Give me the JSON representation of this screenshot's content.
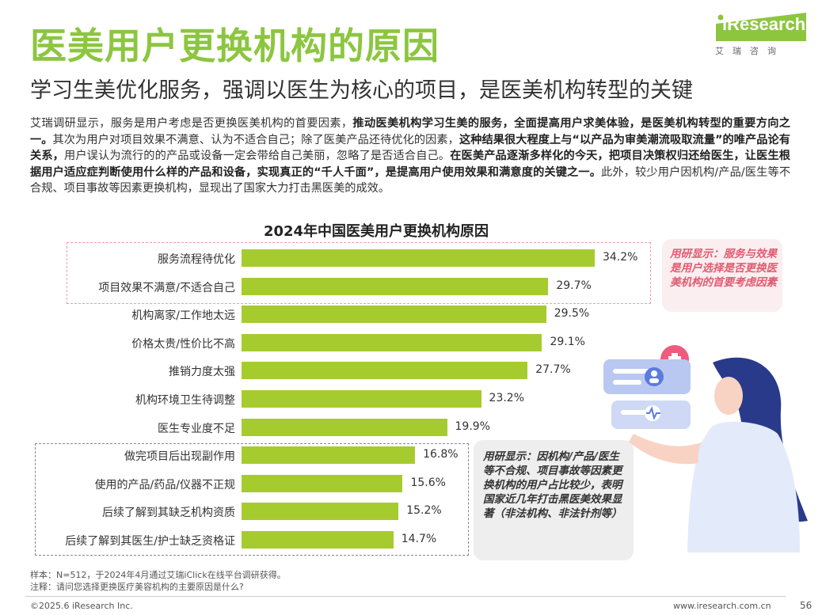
{
  "header": {
    "title": "医美用户更换机构的原因",
    "subtitle": "学习生美优化服务，强调以医生为核心的项目，是医美机构转型的关键",
    "logo_text": "iResearch",
    "logo_sub": "艾瑞咨询"
  },
  "body": {
    "p1": "艾瑞调研显示，服务是用户考虑是否更换医美机构的首要因素，",
    "b1": "推动医美机构学习生美的服务，全面提高用户求美体验，是医美机构转型的重要方向之一。",
    "p2": "其次为用户对项目效果不满意、认为不适合自己；除了医美产品还待优化的因素，",
    "b2": "这种结果很大程度上与“以产品为审美潮流吸取流量”的唯产品论有关系，",
    "p3": "用户误认为流行的的产品或设备一定会带给自己美丽，忽略了是否适合自己。",
    "b3": "在医美产品逐渐多样化的今天，把项目决策权归还给医生，让医生根据用户适应症判断使用什么样的产品和设备，实现真正的“千人千面”，是提高用户使用效果和满意度的关键之一。",
    "p4": "此外，较少用户因机构/产品/医生等不合规、项目事故等因素更换机构，显现出了国家大力打击黑医美的成效。"
  },
  "chart_data": {
    "type": "bar",
    "orientation": "horizontal",
    "title": "2024年中国医美用户更换机构原因",
    "categories": [
      "服务流程待优化",
      "项目效果不满意/不适合自己",
      "机构离家/工作地太远",
      "价格太贵/性价比不高",
      "推销力度太强",
      "机构环境卫生待调整",
      "医生专业度不足",
      "做完项目后出现副作用",
      "使用的产品/药品/仪器不正规",
      "后续了解到其缺乏机构资质",
      "后续了解到其医生/护士缺乏资格证"
    ],
    "values": [
      34.2,
      29.7,
      29.5,
      29.1,
      27.7,
      23.2,
      19.9,
      16.8,
      15.6,
      15.2,
      14.7
    ],
    "labels": [
      "34.2%",
      "29.7%",
      "29.5%",
      "29.1%",
      "27.7%",
      "23.2%",
      "19.9%",
      "16.8%",
      "15.6%",
      "15.2%",
      "14.7%"
    ],
    "unit": "%",
    "xlim": [
      0,
      40
    ],
    "bar_color": "#a6cb2e"
  },
  "notes": {
    "pink": "用研显示：服务与效果是用户选择是否更换医美机构的首要考虑因素",
    "gray": "用研显示：因机构/产品/医生等不合规、项目事故等因素更换机构的用户占比较少，表明国家近几年打击黑医美效果显著（非法机构、非法针剂等）"
  },
  "footer": {
    "sample": "样本：N=512，于2024年4月通过艾瑞iClick在线平台调研获得。",
    "note": "注释：请问您选择更换医疗美容机构的主要原因是什么?",
    "copyright": "©2025.6 iResearch Inc.",
    "url": "www.iresearch.com.cn",
    "page": "56"
  },
  "colors": {
    "accent": "#8cc63f",
    "pink": "#e05b70",
    "bar": "#a6cb2e"
  }
}
